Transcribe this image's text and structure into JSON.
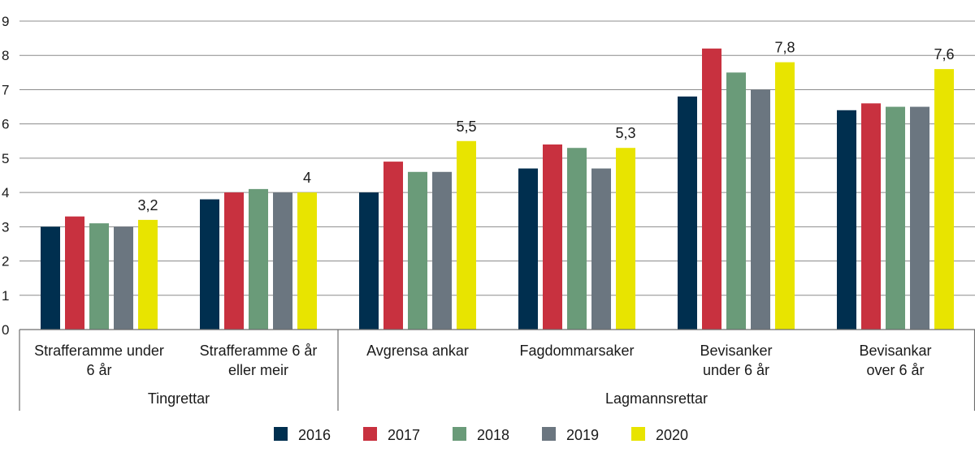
{
  "chart_data": {
    "type": "bar",
    "title": "",
    "xlabel": "",
    "ylabel": "",
    "ylim": [
      0,
      9
    ],
    "yticks": [
      "0",
      "1",
      "2",
      "3",
      "4",
      "5",
      "6",
      "7",
      "8",
      "9"
    ],
    "grid": true,
    "legend_position": "bottom",
    "categories": [
      [
        "Strafferamme under",
        "6 år"
      ],
      [
        "Strafferamme 6 år",
        "eller meir"
      ],
      [
        "Avgrensa ankar"
      ],
      [
        "Fagdommarsaker"
      ],
      [
        "Bevisanker",
        "under 6 år"
      ],
      [
        "Bevisankar",
        "over 6 år"
      ]
    ],
    "groups": [
      {
        "label": "Tingrettar",
        "span": [
          0,
          1
        ]
      },
      {
        "label": "Lagmannsrettar",
        "span": [
          2,
          5
        ]
      }
    ],
    "series": [
      {
        "name": "2016",
        "color": "#002f4f",
        "values": [
          3.0,
          3.8,
          4.0,
          4.7,
          6.8,
          6.4
        ]
      },
      {
        "name": "2017",
        "color": "#c8313f",
        "values": [
          3.3,
          4.0,
          4.9,
          5.4,
          8.2,
          6.6
        ]
      },
      {
        "name": "2018",
        "color": "#6a9b79",
        "values": [
          3.1,
          4.1,
          4.6,
          5.3,
          7.5,
          6.5
        ]
      },
      {
        "name": "2019",
        "color": "#6b7680",
        "values": [
          3.0,
          4.0,
          4.6,
          4.7,
          7.0,
          6.5
        ]
      },
      {
        "name": "2020",
        "color": "#e8e400",
        "values": [
          3.2,
          4.0,
          5.5,
          5.3,
          7.8,
          7.6
        ]
      }
    ],
    "data_labels": {
      "series": "2020",
      "texts": [
        "3,2",
        "4",
        "5,5",
        "5,3",
        "7,8",
        "7,6"
      ]
    }
  }
}
